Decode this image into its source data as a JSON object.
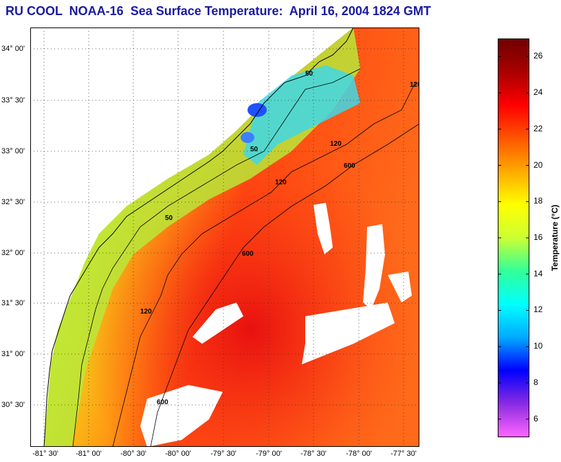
{
  "title": "RU COOL  NOAA-16  Sea Surface Temperature:  April 16, 2004 1824 GMT",
  "latitude_labels": [
    "34° 00'",
    "33° 30'",
    "33° 00'",
    "32° 30'",
    "32° 00'",
    "31° 30'",
    "31° 00'",
    "30° 30'"
  ],
  "longitude_labels": [
    "-81° 30'",
    "-81° 00'",
    "-80° 30'",
    "-80° 00'",
    "-79° 30'",
    "-79° 00'",
    "-78° 30'",
    "-78° 00'",
    "-77° 30'"
  ],
  "contours": [
    "50",
    "120",
    "600"
  ],
  "colorbar": {
    "title": "Temperature (°C)",
    "ticks": [
      "26",
      "24",
      "22",
      "20",
      "18",
      "16",
      "14",
      "12",
      "10",
      "8",
      "6"
    ],
    "range": [
      5,
      27
    ],
    "colors": [
      "#ff66ff",
      "#8a2be2",
      "#0000ff",
      "#00aaff",
      "#00ffff",
      "#33ff99",
      "#ccff33",
      "#ffff00",
      "#ffaa00",
      "#ff5500",
      "#ff0000",
      "#aa0000",
      "#700000"
    ]
  }
}
